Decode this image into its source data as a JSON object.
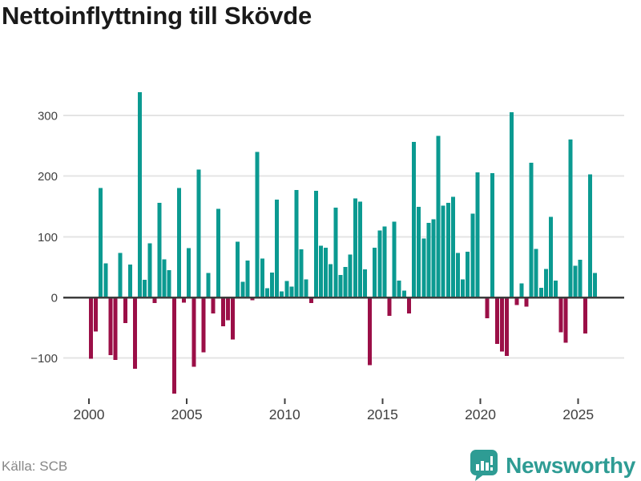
{
  "title": "Nettoinflyttning till Skövde",
  "source": "Källa: SCB",
  "logo": {
    "text": "Newsworthy",
    "icon": "newsworthy-bar-chart-bubble-icon"
  },
  "colors": {
    "positive_bar": "#0b9a91",
    "negative_bar": "#9b0f47",
    "grid_line": "#e4e4e4",
    "zero_line": "#3d3d3d",
    "axis_text": "#404040",
    "title_text": "#1a1a1a",
    "source_text": "#878787",
    "brand_teal": "#2e9c94",
    "background": "#ffffff"
  },
  "chart_data": {
    "type": "bar",
    "title": "Nettoinflyttning till Skövde",
    "xlabel": "",
    "ylabel": "",
    "unit": "persons (net migration per quarter)",
    "start": "2000-Q1",
    "end": "2025-Q4",
    "frequency": "quarterly",
    "x_tick_labels": [
      "2000",
      "2005",
      "2010",
      "2015",
      "2020",
      "2025"
    ],
    "y_ticks": [
      300,
      200,
      100,
      0,
      -100
    ],
    "y_tick_labels": [
      "300",
      "200",
      "100",
      "0",
      "−100"
    ],
    "ylim": [
      -166,
      351
    ],
    "grid": "horizontal",
    "legend": "none",
    "years": [
      {
        "year": 2000,
        "values": [
          -100,
          -55,
          180,
          56
        ]
      },
      {
        "year": 2001,
        "values": [
          -94,
          -102,
          73,
          -41
        ]
      },
      {
        "year": 2002,
        "values": [
          54,
          -116,
          338,
          29
        ]
      },
      {
        "year": 2003,
        "values": [
          89,
          -8,
          156,
          63
        ]
      },
      {
        "year": 2004,
        "values": [
          45,
          -157,
          180,
          -7
        ]
      },
      {
        "year": 2005,
        "values": [
          81,
          -113,
          211,
          -89
        ]
      },
      {
        "year": 2006,
        "values": [
          40,
          -25,
          146,
          -46
        ]
      },
      {
        "year": 2007,
        "values": [
          -36,
          -68,
          92,
          26
        ]
      },
      {
        "year": 2008,
        "values": [
          61,
          -3,
          240,
          64
        ]
      },
      {
        "year": 2009,
        "values": [
          15,
          41,
          161,
          10
        ]
      },
      {
        "year": 2010,
        "values": [
          27,
          18,
          177,
          79
        ]
      },
      {
        "year": 2011,
        "values": [
          30,
          -8,
          176,
          85
        ]
      },
      {
        "year": 2012,
        "values": [
          82,
          55,
          148,
          37
        ]
      },
      {
        "year": 2013,
        "values": [
          50,
          71,
          163,
          158
        ]
      },
      {
        "year": 2014,
        "values": [
          46,
          -110,
          82,
          110
        ]
      },
      {
        "year": 2015,
        "values": [
          117,
          -29,
          125,
          28
        ]
      },
      {
        "year": 2016,
        "values": [
          11,
          -25,
          256,
          149
        ]
      },
      {
        "year": 2017,
        "values": [
          97,
          123,
          129,
          266
        ]
      },
      {
        "year": 2018,
        "values": [
          151,
          156,
          166,
          73
        ]
      },
      {
        "year": 2019,
        "values": [
          30,
          75,
          138,
          206
        ]
      },
      {
        "year": 2020,
        "values": [
          0,
          -33,
          205,
          -75
        ]
      },
      {
        "year": 2021,
        "values": [
          -88,
          -95,
          305,
          -11
        ]
      },
      {
        "year": 2022,
        "values": [
          23,
          -14,
          222,
          80
        ]
      },
      {
        "year": 2023,
        "values": [
          16,
          47,
          133,
          28
        ]
      },
      {
        "year": 2024,
        "values": [
          -56,
          -73,
          260,
          52
        ]
      },
      {
        "year": 2025,
        "values": [
          62,
          -58,
          203,
          40
        ]
      }
    ]
  }
}
